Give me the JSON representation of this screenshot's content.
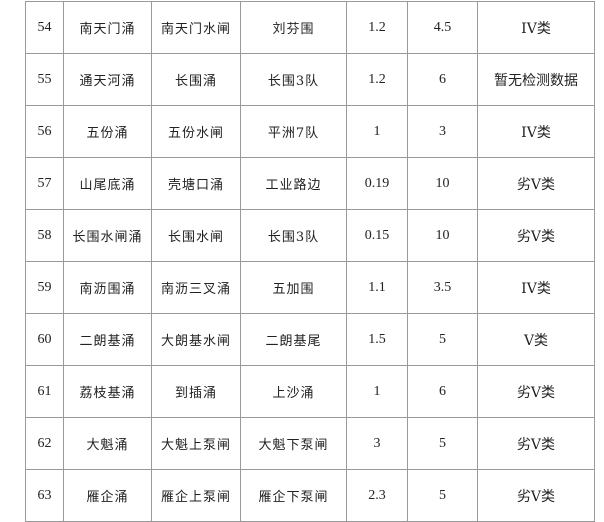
{
  "rows": [
    {
      "no": "54",
      "river": "南天门涌",
      "section": "南天门水闸",
      "location": "刘芬围",
      "width": "1.2",
      "length": "4.5",
      "quality": "IV类"
    },
    {
      "no": "55",
      "river": "通天河涌",
      "section": "长围涌",
      "location": "长围3队",
      "width": "1.2",
      "length": "6",
      "quality": "暂无检测数据"
    },
    {
      "no": "56",
      "river": "五份涌",
      "section": "五份水闸",
      "location": "平洲7队",
      "width": "1",
      "length": "3",
      "quality": "IV类"
    },
    {
      "no": "57",
      "river": "山尾底涌",
      "section": "壳塘口涌",
      "location": "工业路边",
      "width": "0.19",
      "length": "10",
      "quality": "劣V类"
    },
    {
      "no": "58",
      "river": "长围水闸涌",
      "section": "长围水闸",
      "location": "长围3队",
      "width": "0.15",
      "length": "10",
      "quality": "劣V类"
    },
    {
      "no": "59",
      "river": "南沥围涌",
      "section": "南沥三叉涌",
      "location": "五加围",
      "width": "1.1",
      "length": "3.5",
      "quality": "IV类"
    },
    {
      "no": "60",
      "river": "二朗基涌",
      "section": "大朗基水闸",
      "location": "二朗基尾",
      "width": "1.5",
      "length": "5",
      "quality": "V类"
    },
    {
      "no": "61",
      "river": "荔枝基涌",
      "section": "到插涌",
      "location": "上沙涌",
      "width": "1",
      "length": "6",
      "quality": "劣V类"
    },
    {
      "no": "62",
      "river": "大魁涌",
      "section": "大魁上泵闸",
      "location": "大魁下泵闸",
      "width": "3",
      "length": "5",
      "quality": "劣V类"
    },
    {
      "no": "63",
      "river": "雁企涌",
      "section": "雁企上泵闸",
      "location": "雁企下泵闸",
      "width": "2.3",
      "length": "5",
      "quality": "劣V类"
    }
  ]
}
